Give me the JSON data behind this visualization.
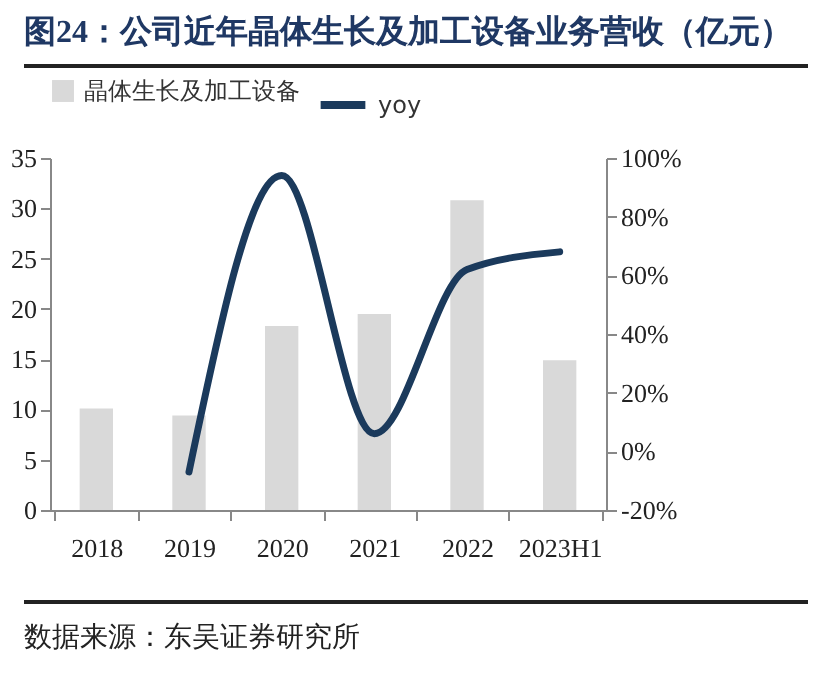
{
  "chart_data": {
    "type": "bar",
    "title": "图24：公司近年晶体生长及加工设备业务营收（亿元）",
    "categories": [
      "2018",
      "2019",
      "2020",
      "2021",
      "2022",
      "2023H1"
    ],
    "series": [
      {
        "name": "晶体生长及加工设备",
        "color": "#d9d9d9",
        "values": [
          10.1,
          9.4,
          18.3,
          19.5,
          30.8,
          14.9
        ]
      },
      {
        "name": "yoy",
        "type": "line",
        "axis": "y2",
        "color": "#1b3a5c",
        "values": [
          null,
          -7,
          94,
          6,
          62,
          68
        ]
      }
    ],
    "ylim": [
      0,
      35
    ],
    "yticks": [
      0,
      5,
      10,
      15,
      20,
      25,
      30,
      35
    ],
    "y2lim": [
      -20,
      100
    ],
    "y2ticks": [
      {
        "value": -20,
        "label": "-20%"
      },
      {
        "value": 0,
        "label": "0%"
      },
      {
        "value": 20,
        "label": "20%"
      },
      {
        "value": 40,
        "label": "40%"
      },
      {
        "value": 60,
        "label": "60%"
      },
      {
        "value": 80,
        "label": "80%"
      },
      {
        "value": 100,
        "label": "100%"
      }
    ],
    "grid": false,
    "legend": "top",
    "marker": "none",
    "line_style": "solid",
    "annotations": [
      "数据来源：东吴证券研究所"
    ]
  }
}
